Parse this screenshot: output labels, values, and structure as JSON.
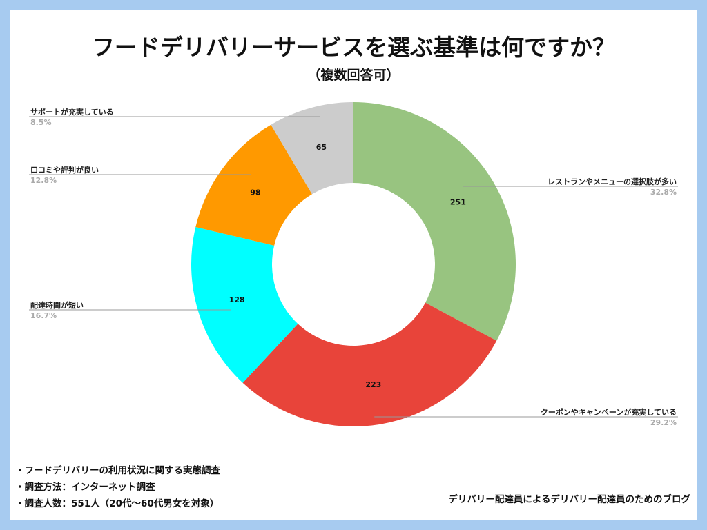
{
  "title": "フードデリバリーサービスを選ぶ基準は何ですか？",
  "subtitle": "（複数回答可）",
  "chart_data": {
    "type": "pie",
    "title": "フードデリバリーサービスを選ぶ基準は何ですか？",
    "subtitle": "（複数回答可）",
    "donut": true,
    "slices": [
      {
        "label": "レストランやメニューの選択肢が多い",
        "value": 251,
        "percent": "32.8%",
        "color": "#98c480"
      },
      {
        "label": "クーポンやキャンペーンが充実している",
        "value": 223,
        "percent": "29.2%",
        "color": "#e8443a"
      },
      {
        "label": "配達時間が短い",
        "value": 128,
        "percent": "16.7%",
        "color": "#00ffff"
      },
      {
        "label": "口コミや評判が良い",
        "value": 98,
        "percent": "12.8%",
        "color": "#ff9900"
      },
      {
        "label": "サポートが充実している",
        "value": 65,
        "percent": "8.5%",
        "color": "#cccccc"
      }
    ]
  },
  "notes": [
    "フードデリバリーの利用状況に関する実態調査",
    "調査方法：インターネット調査",
    "調査人数：551人（20代〜60代男女を対象）"
  ],
  "credit": "デリバリー配達員によるデリバリー配達員のためのブログ"
}
